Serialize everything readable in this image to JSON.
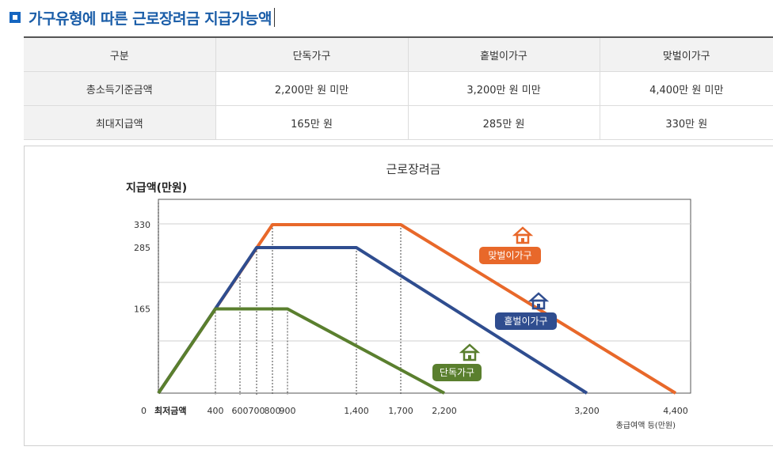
{
  "heading": {
    "title": "가구유형에 따른 근로장려금 지급가능액"
  },
  "table": {
    "headers": [
      "구분",
      "단독가구",
      "홑벌이가구",
      "맞벌이가구"
    ],
    "rows": [
      [
        "총소득기준금액",
        "2,200만 원 미만",
        "3,200만 원 미만",
        "4,400만 원 미만"
      ],
      [
        "최대지급액",
        "165만 원",
        "285만 원",
        "330만 원"
      ]
    ]
  },
  "chart_data": {
    "type": "line",
    "title": "근로장려금",
    "ylabel": "지급액(만원)",
    "xlabel": "총급여액 등(만원)",
    "origin_label": "0",
    "min_label": "최저금액",
    "x_ticks": [
      400,
      600,
      700,
      800,
      900,
      1400,
      1700,
      2200,
      3200,
      4400
    ],
    "x_tick_labels": [
      "400",
      "600",
      "700",
      "800",
      "900",
      "1,400",
      "1,700",
      "2,200",
      "3,200",
      "4,400"
    ],
    "y_ticks": [
      165,
      285,
      330
    ],
    "y_tick_labels": [
      "165",
      "285",
      "330"
    ],
    "grid": true,
    "series": [
      {
        "name": "단독가구",
        "color": "#5a7f2e",
        "icon": "house-icon",
        "points": [
          [
            0,
            0
          ],
          [
            400,
            165
          ],
          [
            900,
            165
          ],
          [
            2200,
            0
          ]
        ]
      },
      {
        "name": "홑벌이가구",
        "color": "#2f4d8f",
        "icon": "house-icon",
        "points": [
          [
            0,
            0
          ],
          [
            700,
            285
          ],
          [
            1400,
            285
          ],
          [
            3200,
            0
          ]
        ]
      },
      {
        "name": "맞벌이가구",
        "color": "#e8682a",
        "icon": "house-icon",
        "points": [
          [
            0,
            0
          ],
          [
            800,
            330
          ],
          [
            1700,
            330
          ],
          [
            4400,
            0
          ]
        ]
      }
    ]
  }
}
